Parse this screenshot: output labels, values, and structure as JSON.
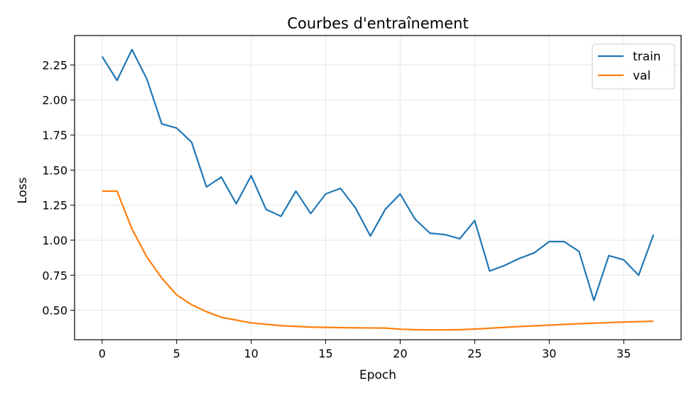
{
  "chart_data": {
    "type": "line",
    "title": "Courbes d'entraînement",
    "xlabel": "Epoch",
    "ylabel": "Loss",
    "xlim": [
      -1.85,
      38.85
    ],
    "ylim": [
      0.29,
      2.46
    ],
    "x_ticks": [
      0,
      5,
      10,
      15,
      20,
      25,
      30,
      35
    ],
    "y_ticks": [
      0.5,
      0.75,
      1.0,
      1.25,
      1.5,
      1.75,
      2.0,
      2.25
    ],
    "grid": true,
    "legend_position": "top-right",
    "x": [
      0,
      1,
      2,
      3,
      4,
      5,
      6,
      7,
      8,
      9,
      10,
      11,
      12,
      13,
      14,
      15,
      16,
      17,
      18,
      19,
      20,
      21,
      22,
      23,
      24,
      25,
      26,
      27,
      28,
      29,
      30,
      31,
      32,
      33,
      34,
      35,
      36,
      37
    ],
    "series": [
      {
        "name": "train",
        "color": "#1f77b4",
        "values": [
          2.31,
          2.14,
          2.36,
          2.15,
          1.83,
          1.8,
          1.7,
          1.38,
          1.45,
          1.26,
          1.46,
          1.22,
          1.17,
          1.35,
          1.19,
          1.33,
          1.37,
          1.23,
          1.03,
          1.22,
          1.33,
          1.15,
          1.05,
          1.04,
          1.01,
          1.14,
          0.78,
          0.82,
          0.87,
          0.91,
          0.99,
          0.99,
          0.92,
          0.57,
          0.89,
          0.86,
          0.75,
          1.04
        ]
      },
      {
        "name": "val",
        "color": "#ff7f0e",
        "values": [
          1.35,
          1.35,
          1.08,
          0.88,
          0.73,
          0.61,
          0.54,
          0.49,
          0.45,
          0.43,
          0.41,
          0.4,
          0.39,
          0.385,
          0.38,
          0.378,
          0.376,
          0.375,
          0.374,
          0.373,
          0.365,
          0.362,
          0.36,
          0.36,
          0.362,
          0.366,
          0.372,
          0.378,
          0.384,
          0.389,
          0.394,
          0.399,
          0.404,
          0.408,
          0.412,
          0.416,
          0.419,
          0.422
        ]
      }
    ]
  }
}
